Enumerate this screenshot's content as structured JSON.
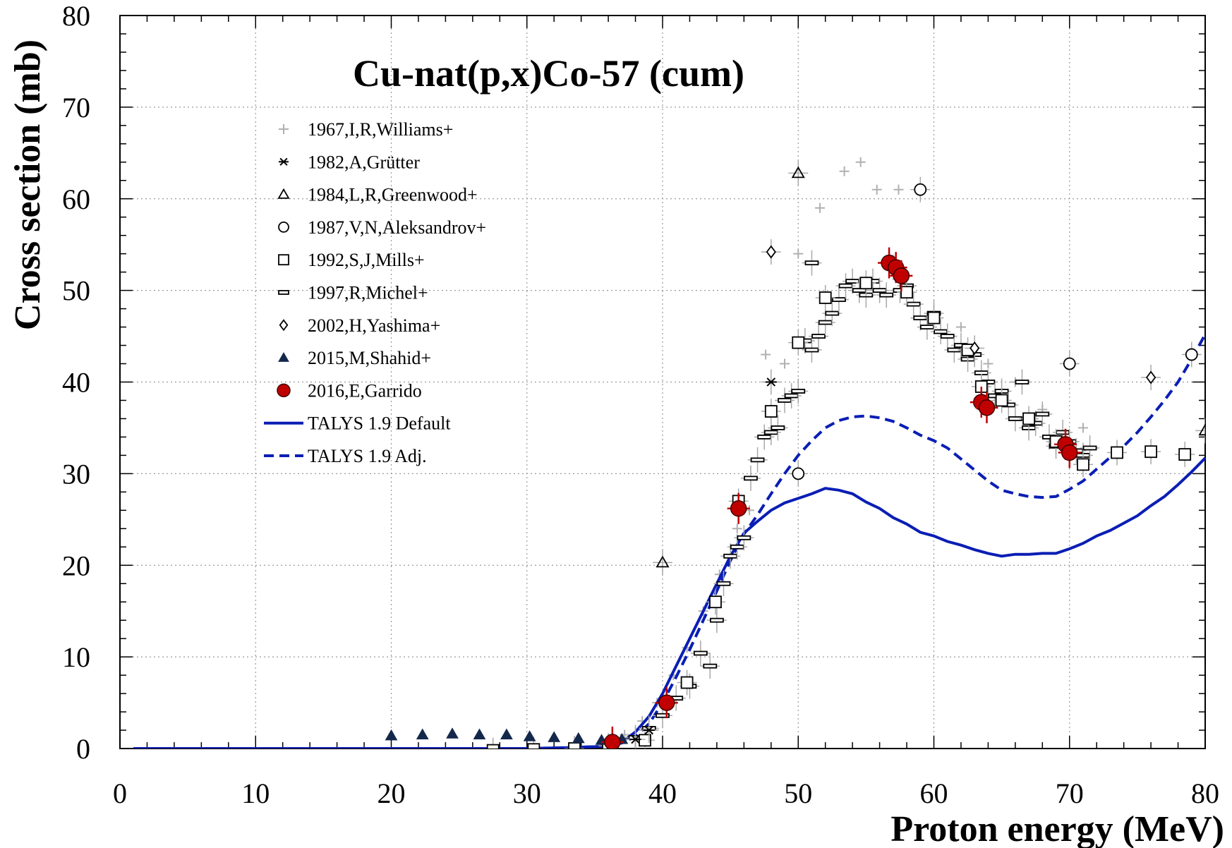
{
  "chart_data": {
    "type": "scatter",
    "title": "Cu-nat(p,x)Co-57 (cum)",
    "xlabel": "Proton energy (MeV)",
    "ylabel": "Cross section (mb)",
    "xlim": [
      0,
      80
    ],
    "ylim": [
      0,
      80
    ],
    "x_ticks": [
      "0",
      "10",
      "20",
      "30",
      "40",
      "50",
      "60",
      "70",
      "80"
    ],
    "y_ticks": [
      "0",
      "10",
      "20",
      "30",
      "40",
      "50",
      "60",
      "70",
      "80"
    ],
    "grid": true,
    "legend_position": "top-left",
    "colors": {
      "williams": "#b0b0b0",
      "experiment": "#000000",
      "shahid": "#14284b",
      "garrido_fill": "#c00000",
      "garrido_error": "#c00000",
      "talys": "#0a1eb4",
      "grid": "#9a9a9a"
    },
    "series": [
      {
        "name": "1967,I,R,Williams+",
        "marker": "plus",
        "points": [
          [
            36.0,
            0.6
          ],
          [
            37.2,
            1.5
          ],
          [
            38.5,
            3.0
          ],
          [
            39.6,
            5.0
          ],
          [
            40.8,
            8.0
          ],
          [
            41.8,
            11.0
          ],
          [
            43.0,
            15.0
          ],
          [
            44.2,
            19.0
          ],
          [
            45.5,
            24.0
          ],
          [
            46.4,
            26.0
          ],
          [
            47.6,
            43.0
          ],
          [
            49.0,
            42.0
          ],
          [
            50.0,
            54.0
          ],
          [
            51.6,
            59.0
          ],
          [
            53.4,
            63.0
          ],
          [
            54.6,
            64.0
          ],
          [
            55.8,
            61.0
          ],
          [
            57.4,
            61.0
          ],
          [
            62.0,
            46.0
          ],
          [
            64.0,
            42.0
          ],
          [
            66.0,
            40.0
          ],
          [
            68.0,
            37.0
          ],
          [
            71.0,
            35.0
          ]
        ]
      },
      {
        "name": "1982,A,Grütter",
        "marker": "star",
        "points": [
          [
            38.0,
            1.0
          ],
          [
            39.0,
            2.0
          ],
          [
            48.0,
            40.0
          ]
        ]
      },
      {
        "name": "1984,L,R,Greenwood+",
        "marker": "triangle-open",
        "points": [
          [
            40.0,
            20.3
          ],
          [
            50.0,
            62.8
          ],
          [
            80.0,
            34.7
          ]
        ]
      },
      {
        "name": "1987,V,N,Aleksandrov+",
        "marker": "circle-open",
        "points": [
          [
            50.0,
            30.0
          ],
          [
            59.0,
            61.0
          ],
          [
            70.0,
            42.0
          ],
          [
            79.0,
            43.0
          ]
        ]
      },
      {
        "name": "1992,S,J,Mills+",
        "marker": "square-open",
        "points": [
          [
            27.5,
            -0.2
          ],
          [
            30.5,
            -0.1
          ],
          [
            33.5,
            0.0
          ],
          [
            36.0,
            0.3
          ],
          [
            38.7,
            0.9
          ],
          [
            41.8,
            7.2
          ],
          [
            43.9,
            16.0
          ],
          [
            45.6,
            27.0
          ],
          [
            48.0,
            36.8
          ],
          [
            50.0,
            44.3
          ],
          [
            52.0,
            49.2
          ],
          [
            55.0,
            50.8
          ],
          [
            58.0,
            49.8
          ],
          [
            60.0,
            47.0
          ],
          [
            62.5,
            43.5
          ],
          [
            63.5,
            39.5
          ],
          [
            65.0,
            38.0
          ],
          [
            67.0,
            36.0
          ],
          [
            69.0,
            33.5
          ],
          [
            71.0,
            31.0
          ],
          [
            73.5,
            32.3
          ],
          [
            76.0,
            32.4
          ],
          [
            78.5,
            32.1
          ]
        ]
      },
      {
        "name": "1997,R,Michel+",
        "marker": "dash",
        "points": [
          [
            38.0,
            1.2
          ],
          [
            39.0,
            2.2
          ],
          [
            40.0,
            3.6
          ],
          [
            41.0,
            5.5
          ],
          [
            42.0,
            6.8
          ],
          [
            42.8,
            10.4
          ],
          [
            43.5,
            9.0
          ],
          [
            44.0,
            14.0
          ],
          [
            44.5,
            18.0
          ],
          [
            45.0,
            21.0
          ],
          [
            45.5,
            22.0
          ],
          [
            46.0,
            23.0
          ],
          [
            46.5,
            29.5
          ],
          [
            47.0,
            31.5
          ],
          [
            47.5,
            34.0
          ],
          [
            48.0,
            34.5
          ],
          [
            48.5,
            35.0
          ],
          [
            49.0,
            38.0
          ],
          [
            49.5,
            38.5
          ],
          [
            50.0,
            39.0
          ],
          [
            50.5,
            44.5
          ],
          [
            51.0,
            43.5
          ],
          [
            51.0,
            53.0
          ],
          [
            51.5,
            45.0
          ],
          [
            52.0,
            46.5
          ],
          [
            52.5,
            47.5
          ],
          [
            53.0,
            49.0
          ],
          [
            53.5,
            50.5
          ],
          [
            54.0,
            51.0
          ],
          [
            54.5,
            50.0
          ],
          [
            55.0,
            49.5
          ],
          [
            55.5,
            51.0
          ],
          [
            56.0,
            50.0
          ],
          [
            56.5,
            49.5
          ],
          [
            57.0,
            52.5
          ],
          [
            57.5,
            50.0
          ],
          [
            58.0,
            50.5
          ],
          [
            58.5,
            48.5
          ],
          [
            59.0,
            47.0
          ],
          [
            59.5,
            46.0
          ],
          [
            60.0,
            47.5
          ],
          [
            60.5,
            45.5
          ],
          [
            61.0,
            45.0
          ],
          [
            61.5,
            43.5
          ],
          [
            62.0,
            44.0
          ],
          [
            62.5,
            42.5
          ],
          [
            63.0,
            43.0
          ],
          [
            63.5,
            41.0
          ],
          [
            64.0,
            40.0
          ],
          [
            64.5,
            38.5
          ],
          [
            65.0,
            39.0
          ],
          [
            65.5,
            37.5
          ],
          [
            66.0,
            36.0
          ],
          [
            66.5,
            40.0
          ],
          [
            67.0,
            35.0
          ],
          [
            67.5,
            35.5
          ],
          [
            68.0,
            36.5
          ],
          [
            68.5,
            34.0
          ],
          [
            69.0,
            33.0
          ],
          [
            69.5,
            34.5
          ],
          [
            70.0,
            33.5
          ],
          [
            70.5,
            32.5
          ],
          [
            71.0,
            32.0
          ],
          [
            71.5,
            32.8
          ]
        ]
      },
      {
        "name": "2002,H,Yashima+",
        "marker": "diamond-open",
        "points": [
          [
            48.0,
            54.2
          ],
          [
            63.0,
            43.7
          ],
          [
            76.0,
            40.5
          ]
        ]
      },
      {
        "name": "2015,M,Shahid+",
        "marker": "triangle-filled",
        "points": [
          [
            20.0,
            1.4
          ],
          [
            22.3,
            1.5
          ],
          [
            24.5,
            1.6
          ],
          [
            26.5,
            1.5
          ],
          [
            28.5,
            1.5
          ],
          [
            30.2,
            1.3
          ],
          [
            32.0,
            1.2
          ],
          [
            33.8,
            1.1
          ],
          [
            35.5,
            0.9
          ],
          [
            37.0,
            1.0
          ]
        ]
      },
      {
        "name": "2016,E,Garrido",
        "marker": "circle-filled",
        "points": [
          [
            36.3,
            0.7
          ],
          [
            40.3,
            5.0
          ],
          [
            45.6,
            26.2
          ],
          [
            56.7,
            53.0
          ],
          [
            57.2,
            52.5
          ],
          [
            57.6,
            51.6
          ],
          [
            63.5,
            37.8
          ],
          [
            63.9,
            37.2
          ],
          [
            69.7,
            33.2
          ],
          [
            70.0,
            32.3
          ]
        ]
      },
      {
        "name": "TALYS 1.9 Default",
        "marker": "line-solid",
        "points": [
          [
            1,
            0
          ],
          [
            10,
            0
          ],
          [
            20,
            0
          ],
          [
            30,
            0
          ],
          [
            33,
            0.1
          ],
          [
            35,
            0.2
          ],
          [
            36,
            0.3
          ],
          [
            37,
            0.7
          ],
          [
            38,
            1.8
          ],
          [
            39,
            3.5
          ],
          [
            40,
            6.0
          ],
          [
            41,
            9.0
          ],
          [
            42,
            12.0
          ],
          [
            43,
            15.0
          ],
          [
            44,
            18.0
          ],
          [
            45,
            21.0
          ],
          [
            46,
            23.5
          ],
          [
            47,
            24.8
          ],
          [
            48,
            26.0
          ],
          [
            49,
            26.8
          ],
          [
            50,
            27.3
          ],
          [
            51,
            27.8
          ],
          [
            52,
            28.4
          ],
          [
            53,
            28.2
          ],
          [
            54,
            27.8
          ],
          [
            55,
            26.9
          ],
          [
            56,
            26.2
          ],
          [
            57,
            25.2
          ],
          [
            58,
            24.5
          ],
          [
            59,
            23.6
          ],
          [
            60,
            23.2
          ],
          [
            61,
            22.6
          ],
          [
            62,
            22.2
          ],
          [
            63,
            21.7
          ],
          [
            64,
            21.3
          ],
          [
            65,
            21.0
          ],
          [
            66,
            21.2
          ],
          [
            67,
            21.2
          ],
          [
            68,
            21.3
          ],
          [
            69,
            21.3
          ],
          [
            70,
            21.8
          ],
          [
            71,
            22.4
          ],
          [
            72,
            23.2
          ],
          [
            73,
            23.8
          ],
          [
            74,
            24.6
          ],
          [
            75,
            25.4
          ],
          [
            76,
            26.5
          ],
          [
            77,
            27.5
          ],
          [
            78,
            28.8
          ],
          [
            79,
            30.2
          ],
          [
            80,
            31.7
          ]
        ]
      },
      {
        "name": "TALYS 1.9 Adj.",
        "marker": "line-dashed",
        "points": [
          [
            1,
            0
          ],
          [
            10,
            0
          ],
          [
            20,
            0
          ],
          [
            30,
            0
          ],
          [
            33,
            0.1
          ],
          [
            35,
            0.2
          ],
          [
            36,
            0.3
          ],
          [
            37,
            0.6
          ],
          [
            38,
            1.3
          ],
          [
            39,
            2.7
          ],
          [
            40,
            5.0
          ],
          [
            41,
            7.8
          ],
          [
            42,
            10.8
          ],
          [
            43,
            14.0
          ],
          [
            44,
            17.2
          ],
          [
            45,
            20.5
          ],
          [
            46,
            23.4
          ],
          [
            47,
            25.5
          ],
          [
            48,
            27.8
          ],
          [
            49,
            30.0
          ],
          [
            50,
            32.0
          ],
          [
            51,
            33.6
          ],
          [
            52,
            35.0
          ],
          [
            53,
            35.8
          ],
          [
            54,
            36.2
          ],
          [
            55,
            36.3
          ],
          [
            56,
            36.1
          ],
          [
            57,
            35.7
          ],
          [
            58,
            35.0
          ],
          [
            59,
            34.2
          ],
          [
            60,
            33.6
          ],
          [
            61,
            32.8
          ],
          [
            62,
            31.6
          ],
          [
            63,
            30.4
          ],
          [
            64,
            29.2
          ],
          [
            65,
            28.2
          ],
          [
            66,
            27.8
          ],
          [
            67,
            27.5
          ],
          [
            68,
            27.4
          ],
          [
            69,
            27.5
          ],
          [
            70,
            28.3
          ],
          [
            71,
            29.2
          ],
          [
            72,
            30.5
          ],
          [
            73,
            31.8
          ],
          [
            74,
            33.0
          ],
          [
            75,
            34.5
          ],
          [
            76,
            36.2
          ],
          [
            77,
            38.0
          ],
          [
            78,
            40.0
          ],
          [
            79,
            42.5
          ],
          [
            80,
            45.2
          ]
        ]
      }
    ]
  }
}
